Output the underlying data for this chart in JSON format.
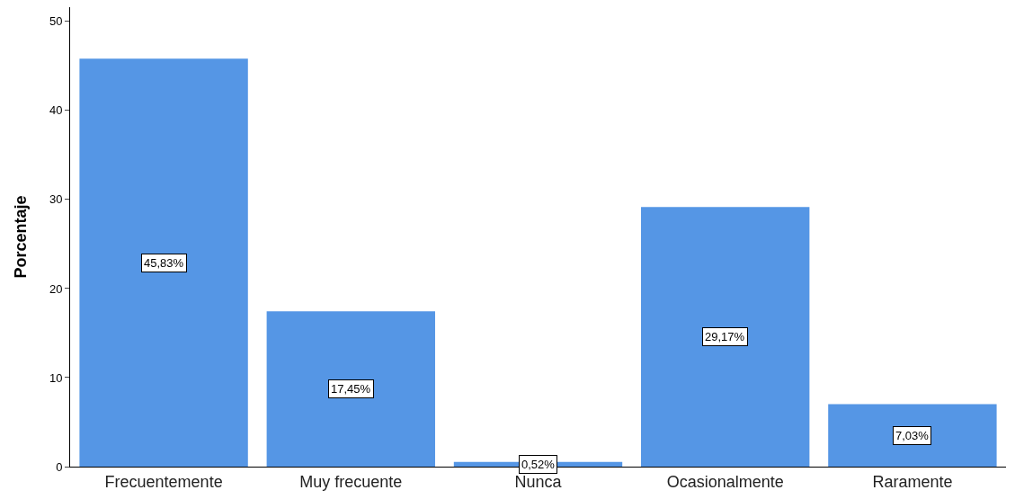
{
  "chart_data": {
    "type": "bar",
    "ylabel": "Porcentaje",
    "categories": [
      "Frecuentemente",
      "Muy frecuente",
      "Nunca",
      "Ocasionalmente",
      "Raramente"
    ],
    "values": [
      45.83,
      17.45,
      0.52,
      29.17,
      7.03
    ],
    "value_labels": [
      "45,83%",
      "17,45%",
      "0,52%",
      "29,17%",
      "7,03%"
    ],
    "color": "#5596e5",
    "ylim": [
      0,
      51.6
    ],
    "yticks": [
      0,
      10,
      20,
      30,
      40,
      50
    ],
    "grid": false,
    "legend": false
  }
}
